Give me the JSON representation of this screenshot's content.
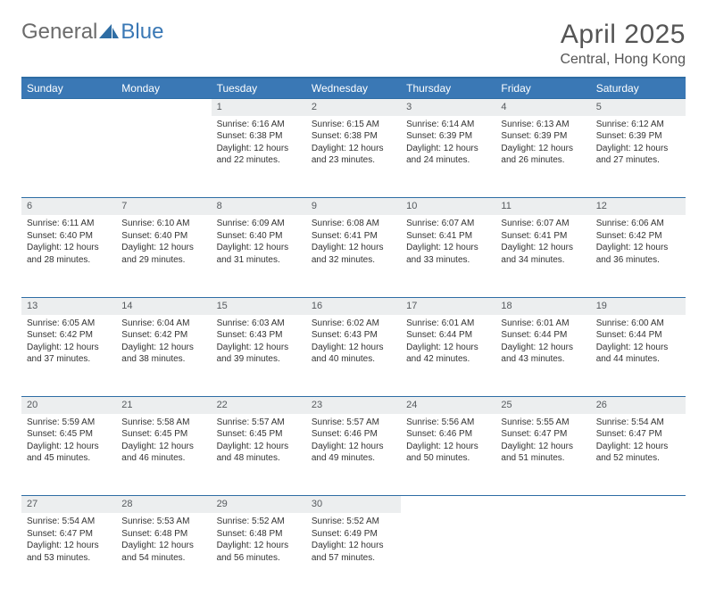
{
  "brand": {
    "part1": "General",
    "part2": "Blue"
  },
  "title": "April 2025",
  "location": "Central, Hong Kong",
  "colors": {
    "header_bg": "#3a78b5",
    "header_border": "#2e6da4",
    "daynum_bg": "#eceeef",
    "text": "#333333"
  },
  "dayHeaders": [
    "Sunday",
    "Monday",
    "Tuesday",
    "Wednesday",
    "Thursday",
    "Friday",
    "Saturday"
  ],
  "weeks": [
    [
      null,
      null,
      {
        "n": "1",
        "sr": "Sunrise: 6:16 AM",
        "ss": "Sunset: 6:38 PM",
        "dl": "Daylight: 12 hours and 22 minutes."
      },
      {
        "n": "2",
        "sr": "Sunrise: 6:15 AM",
        "ss": "Sunset: 6:38 PM",
        "dl": "Daylight: 12 hours and 23 minutes."
      },
      {
        "n": "3",
        "sr": "Sunrise: 6:14 AM",
        "ss": "Sunset: 6:39 PM",
        "dl": "Daylight: 12 hours and 24 minutes."
      },
      {
        "n": "4",
        "sr": "Sunrise: 6:13 AM",
        "ss": "Sunset: 6:39 PM",
        "dl": "Daylight: 12 hours and 26 minutes."
      },
      {
        "n": "5",
        "sr": "Sunrise: 6:12 AM",
        "ss": "Sunset: 6:39 PM",
        "dl": "Daylight: 12 hours and 27 minutes."
      }
    ],
    [
      {
        "n": "6",
        "sr": "Sunrise: 6:11 AM",
        "ss": "Sunset: 6:40 PM",
        "dl": "Daylight: 12 hours and 28 minutes."
      },
      {
        "n": "7",
        "sr": "Sunrise: 6:10 AM",
        "ss": "Sunset: 6:40 PM",
        "dl": "Daylight: 12 hours and 29 minutes."
      },
      {
        "n": "8",
        "sr": "Sunrise: 6:09 AM",
        "ss": "Sunset: 6:40 PM",
        "dl": "Daylight: 12 hours and 31 minutes."
      },
      {
        "n": "9",
        "sr": "Sunrise: 6:08 AM",
        "ss": "Sunset: 6:41 PM",
        "dl": "Daylight: 12 hours and 32 minutes."
      },
      {
        "n": "10",
        "sr": "Sunrise: 6:07 AM",
        "ss": "Sunset: 6:41 PM",
        "dl": "Daylight: 12 hours and 33 minutes."
      },
      {
        "n": "11",
        "sr": "Sunrise: 6:07 AM",
        "ss": "Sunset: 6:41 PM",
        "dl": "Daylight: 12 hours and 34 minutes."
      },
      {
        "n": "12",
        "sr": "Sunrise: 6:06 AM",
        "ss": "Sunset: 6:42 PM",
        "dl": "Daylight: 12 hours and 36 minutes."
      }
    ],
    [
      {
        "n": "13",
        "sr": "Sunrise: 6:05 AM",
        "ss": "Sunset: 6:42 PM",
        "dl": "Daylight: 12 hours and 37 minutes."
      },
      {
        "n": "14",
        "sr": "Sunrise: 6:04 AM",
        "ss": "Sunset: 6:42 PM",
        "dl": "Daylight: 12 hours and 38 minutes."
      },
      {
        "n": "15",
        "sr": "Sunrise: 6:03 AM",
        "ss": "Sunset: 6:43 PM",
        "dl": "Daylight: 12 hours and 39 minutes."
      },
      {
        "n": "16",
        "sr": "Sunrise: 6:02 AM",
        "ss": "Sunset: 6:43 PM",
        "dl": "Daylight: 12 hours and 40 minutes."
      },
      {
        "n": "17",
        "sr": "Sunrise: 6:01 AM",
        "ss": "Sunset: 6:44 PM",
        "dl": "Daylight: 12 hours and 42 minutes."
      },
      {
        "n": "18",
        "sr": "Sunrise: 6:01 AM",
        "ss": "Sunset: 6:44 PM",
        "dl": "Daylight: 12 hours and 43 minutes."
      },
      {
        "n": "19",
        "sr": "Sunrise: 6:00 AM",
        "ss": "Sunset: 6:44 PM",
        "dl": "Daylight: 12 hours and 44 minutes."
      }
    ],
    [
      {
        "n": "20",
        "sr": "Sunrise: 5:59 AM",
        "ss": "Sunset: 6:45 PM",
        "dl": "Daylight: 12 hours and 45 minutes."
      },
      {
        "n": "21",
        "sr": "Sunrise: 5:58 AM",
        "ss": "Sunset: 6:45 PM",
        "dl": "Daylight: 12 hours and 46 minutes."
      },
      {
        "n": "22",
        "sr": "Sunrise: 5:57 AM",
        "ss": "Sunset: 6:45 PM",
        "dl": "Daylight: 12 hours and 48 minutes."
      },
      {
        "n": "23",
        "sr": "Sunrise: 5:57 AM",
        "ss": "Sunset: 6:46 PM",
        "dl": "Daylight: 12 hours and 49 minutes."
      },
      {
        "n": "24",
        "sr": "Sunrise: 5:56 AM",
        "ss": "Sunset: 6:46 PM",
        "dl": "Daylight: 12 hours and 50 minutes."
      },
      {
        "n": "25",
        "sr": "Sunrise: 5:55 AM",
        "ss": "Sunset: 6:47 PM",
        "dl": "Daylight: 12 hours and 51 minutes."
      },
      {
        "n": "26",
        "sr": "Sunrise: 5:54 AM",
        "ss": "Sunset: 6:47 PM",
        "dl": "Daylight: 12 hours and 52 minutes."
      }
    ],
    [
      {
        "n": "27",
        "sr": "Sunrise: 5:54 AM",
        "ss": "Sunset: 6:47 PM",
        "dl": "Daylight: 12 hours and 53 minutes."
      },
      {
        "n": "28",
        "sr": "Sunrise: 5:53 AM",
        "ss": "Sunset: 6:48 PM",
        "dl": "Daylight: 12 hours and 54 minutes."
      },
      {
        "n": "29",
        "sr": "Sunrise: 5:52 AM",
        "ss": "Sunset: 6:48 PM",
        "dl": "Daylight: 12 hours and 56 minutes."
      },
      {
        "n": "30",
        "sr": "Sunrise: 5:52 AM",
        "ss": "Sunset: 6:49 PM",
        "dl": "Daylight: 12 hours and 57 minutes."
      },
      null,
      null,
      null
    ]
  ]
}
